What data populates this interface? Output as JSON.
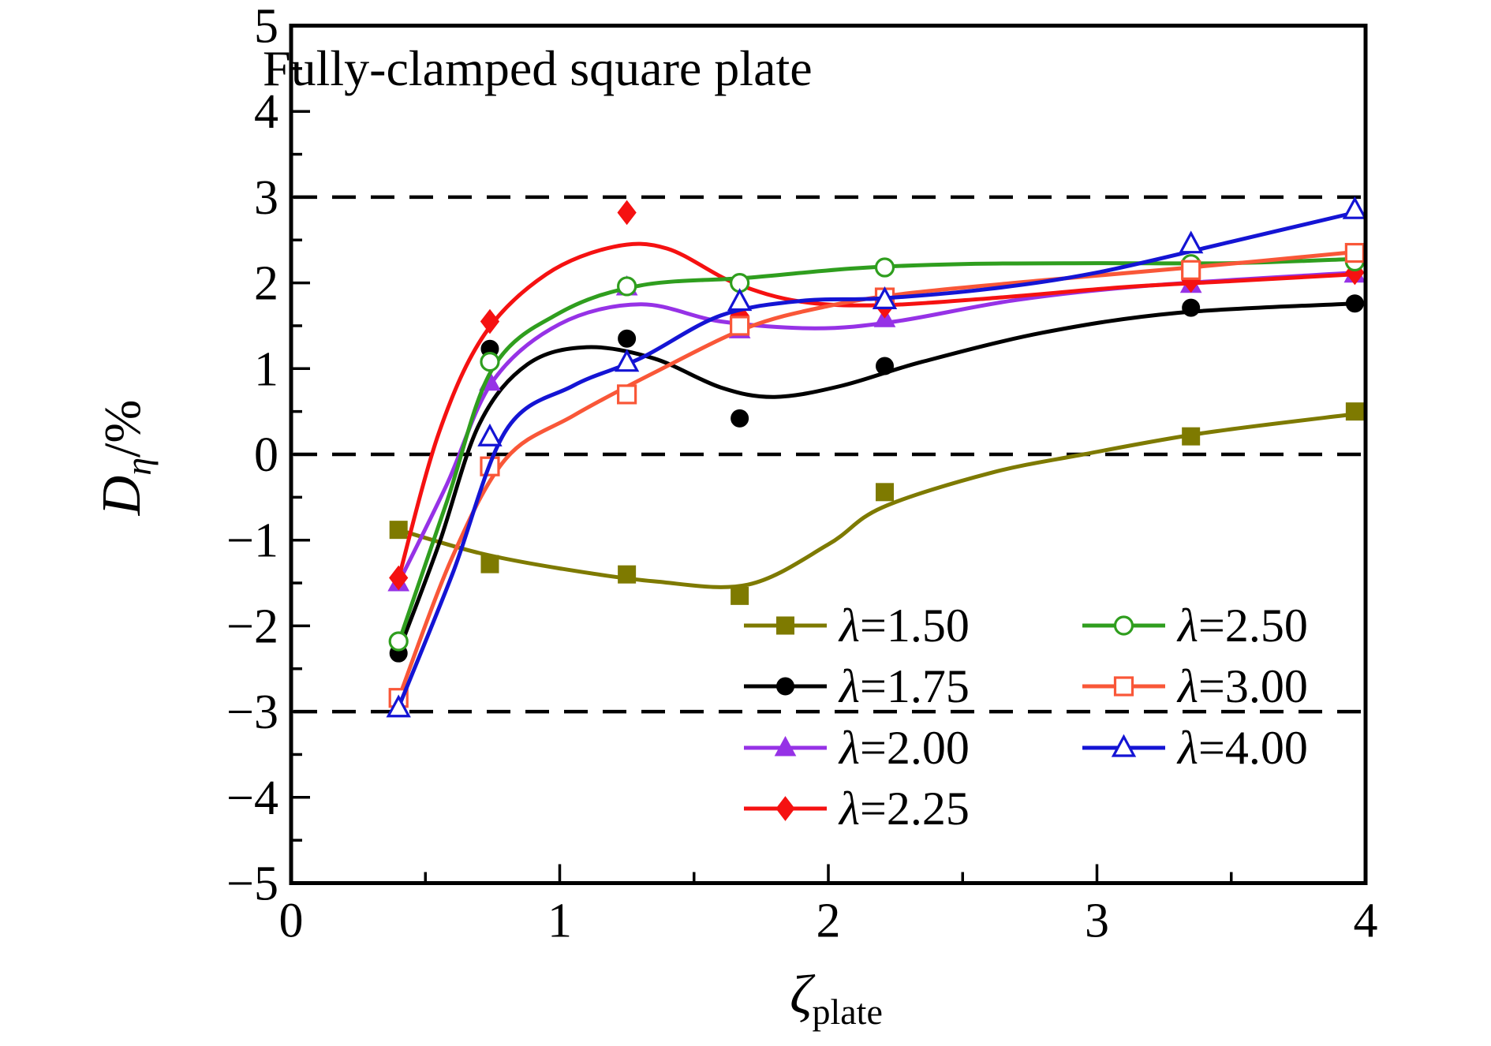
{
  "chart_data": {
    "type": "line",
    "title": "Fully-clamped square plate",
    "xlabel": {
      "symbol": "ζ",
      "subscript": "plate"
    },
    "ylabel": {
      "symbol": "D",
      "subscript": "η",
      "unit": "/%"
    },
    "xlim": [
      0,
      4
    ],
    "ylim": [
      -5,
      5
    ],
    "x_ticks": [
      0,
      1,
      2,
      3,
      4
    ],
    "y_ticks": [
      -5,
      -4,
      -3,
      -2,
      -1,
      0,
      1,
      2,
      3,
      4,
      5
    ],
    "minor_tick_step": 0.5,
    "grid": "off",
    "reference_lines_y": [
      3,
      0,
      -3
    ],
    "reference_line_color": "#000000",
    "legend_position": "inside-bottom-right",
    "legend_columns": [
      [
        0,
        1,
        2,
        3
      ],
      [
        4,
        5,
        6
      ]
    ],
    "series": [
      {
        "label": "λ=1.50",
        "color": "#7e7a00",
        "marker": "square",
        "fill": "filled",
        "points": [
          [
            0.4,
            -0.88
          ],
          [
            0.74,
            -1.28
          ],
          [
            1.25,
            -1.4
          ],
          [
            1.67,
            -1.65
          ],
          [
            2.21,
            -0.44
          ],
          [
            3.35,
            0.21
          ],
          [
            3.96,
            0.5
          ]
        ],
        "curve": [
          [
            0.4,
            -0.88
          ],
          [
            0.7,
            -1.15
          ],
          [
            1.0,
            -1.33
          ],
          [
            1.35,
            -1.48
          ],
          [
            1.7,
            -1.52
          ],
          [
            2.0,
            -1.05
          ],
          [
            2.2,
            -0.62
          ],
          [
            2.6,
            -0.22
          ],
          [
            2.95,
            0.0
          ],
          [
            3.4,
            0.25
          ],
          [
            3.96,
            0.47
          ]
        ]
      },
      {
        "label": "λ=1.75",
        "color": "#000000",
        "marker": "circle",
        "fill": "filled",
        "points": [
          [
            0.4,
            -2.32
          ],
          [
            0.74,
            1.23
          ],
          [
            1.25,
            1.35
          ],
          [
            1.67,
            0.42
          ],
          [
            2.21,
            1.03
          ],
          [
            3.35,
            1.71
          ],
          [
            3.96,
            1.76
          ]
        ],
        "curve": [
          [
            0.4,
            -2.3
          ],
          [
            0.55,
            -1.05
          ],
          [
            0.7,
            0.35
          ],
          [
            0.88,
            1.05
          ],
          [
            1.1,
            1.25
          ],
          [
            1.35,
            1.12
          ],
          [
            1.6,
            0.78
          ],
          [
            1.8,
            0.67
          ],
          [
            2.05,
            0.8
          ],
          [
            2.35,
            1.08
          ],
          [
            2.8,
            1.42
          ],
          [
            3.3,
            1.65
          ],
          [
            3.96,
            1.76
          ]
        ]
      },
      {
        "label": "λ=2.00",
        "color": "#9632e6",
        "marker": "triangle",
        "fill": "filled",
        "points": [
          [
            0.4,
            -1.5
          ],
          [
            0.74,
            0.84
          ],
          [
            1.25,
            1.95
          ],
          [
            1.67,
            1.45
          ],
          [
            2.21,
            1.58
          ],
          [
            3.35,
            1.98
          ],
          [
            3.96,
            2.1
          ]
        ],
        "curve": [
          [
            0.4,
            -1.5
          ],
          [
            0.58,
            -0.35
          ],
          [
            0.75,
            0.85
          ],
          [
            1.0,
            1.52
          ],
          [
            1.3,
            1.75
          ],
          [
            1.6,
            1.55
          ],
          [
            1.95,
            1.47
          ],
          [
            2.25,
            1.55
          ],
          [
            2.7,
            1.8
          ],
          [
            3.2,
            1.97
          ],
          [
            3.96,
            2.12
          ]
        ]
      },
      {
        "label": "λ=2.25",
        "color": "#f51111",
        "marker": "diamond",
        "fill": "filled",
        "points": [
          [
            0.4,
            -1.44
          ],
          [
            0.74,
            1.55
          ],
          [
            1.25,
            2.82
          ],
          [
            1.67,
            1.62
          ],
          [
            2.21,
            1.73
          ],
          [
            3.35,
            2.03
          ],
          [
            3.96,
            2.12
          ]
        ],
        "curve": [
          [
            0.4,
            -1.45
          ],
          [
            0.55,
            0.25
          ],
          [
            0.72,
            1.4
          ],
          [
            0.95,
            2.1
          ],
          [
            1.2,
            2.42
          ],
          [
            1.4,
            2.4
          ],
          [
            1.65,
            2.0
          ],
          [
            1.9,
            1.78
          ],
          [
            2.2,
            1.74
          ],
          [
            2.6,
            1.82
          ],
          [
            3.1,
            1.95
          ],
          [
            3.5,
            2.02
          ],
          [
            3.96,
            2.1
          ]
        ]
      },
      {
        "label": "λ=2.50",
        "color": "#2f9e1e",
        "marker": "circle",
        "fill": "open",
        "points": [
          [
            0.4,
            -2.18
          ],
          [
            0.74,
            1.08
          ],
          [
            1.25,
            1.96
          ],
          [
            1.67,
            2.0
          ],
          [
            2.21,
            2.18
          ],
          [
            3.35,
            2.22
          ],
          [
            3.96,
            2.25
          ]
        ],
        "curve": [
          [
            0.4,
            -2.2
          ],
          [
            0.58,
            -0.55
          ],
          [
            0.75,
            1.0
          ],
          [
            1.0,
            1.65
          ],
          [
            1.3,
            1.97
          ],
          [
            1.7,
            2.06
          ],
          [
            2.1,
            2.17
          ],
          [
            2.5,
            2.22
          ],
          [
            3.0,
            2.23
          ],
          [
            3.5,
            2.23
          ],
          [
            3.96,
            2.28
          ]
        ]
      },
      {
        "label": "λ=3.00",
        "color": "#f95738",
        "marker": "square",
        "fill": "open",
        "points": [
          [
            0.4,
            -2.84
          ],
          [
            0.74,
            -0.14
          ],
          [
            1.25,
            0.7
          ],
          [
            1.67,
            1.5
          ],
          [
            2.21,
            1.83
          ],
          [
            3.35,
            2.15
          ],
          [
            3.96,
            2.35
          ]
        ],
        "curve": [
          [
            0.4,
            -2.85
          ],
          [
            0.6,
            -1.2
          ],
          [
            0.8,
            -0.05
          ],
          [
            1.05,
            0.45
          ],
          [
            1.35,
            0.95
          ],
          [
            1.7,
            1.48
          ],
          [
            2.0,
            1.73
          ],
          [
            2.3,
            1.88
          ],
          [
            2.8,
            2.03
          ],
          [
            3.35,
            2.18
          ],
          [
            3.96,
            2.36
          ]
        ]
      },
      {
        "label": "λ=4.00",
        "color": "#1414d4",
        "marker": "triangle",
        "fill": "open",
        "points": [
          [
            0.4,
            -2.96
          ],
          [
            0.74,
            0.2
          ],
          [
            1.25,
            1.07
          ],
          [
            1.67,
            1.78
          ],
          [
            2.21,
            1.8
          ],
          [
            3.35,
            2.45
          ],
          [
            3.96,
            2.85
          ]
        ],
        "curve": [
          [
            0.4,
            -2.95
          ],
          [
            0.6,
            -1.4
          ],
          [
            0.8,
            0.28
          ],
          [
            1.05,
            0.8
          ],
          [
            1.3,
            1.12
          ],
          [
            1.6,
            1.62
          ],
          [
            1.9,
            1.79
          ],
          [
            2.2,
            1.82
          ],
          [
            2.6,
            1.93
          ],
          [
            3.0,
            2.12
          ],
          [
            3.5,
            2.48
          ],
          [
            3.96,
            2.82
          ]
        ]
      }
    ]
  }
}
